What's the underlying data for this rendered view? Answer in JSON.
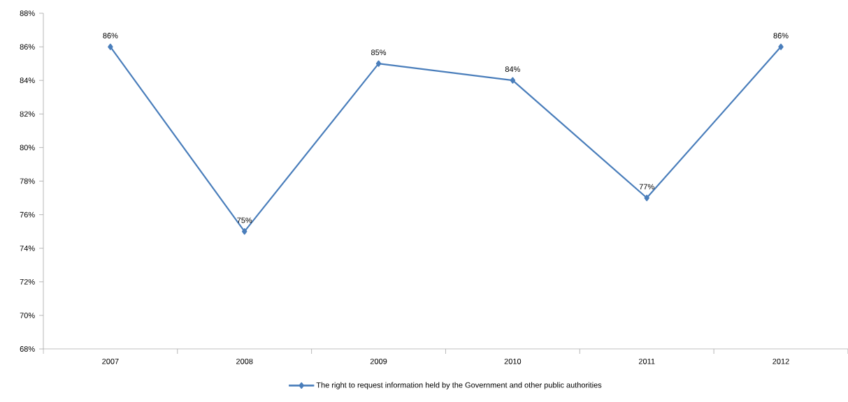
{
  "chart_data": {
    "type": "line",
    "categories": [
      "2007",
      "2008",
      "2009",
      "2010",
      "2011",
      "2012"
    ],
    "series": [
      {
        "name": "The right to request information held by the Government and other public authorities",
        "color": "#4a7ebb",
        "values": [
          86,
          75,
          85,
          84,
          77,
          86
        ],
        "value_labels": [
          "86%",
          "75%",
          "85%",
          "84%",
          "77%",
          "86%"
        ]
      }
    ],
    "ylim": [
      68,
      88
    ],
    "yticks": [
      {
        "value": 68,
        "label": "68%"
      },
      {
        "value": 70,
        "label": "70%"
      },
      {
        "value": 72,
        "label": "72%"
      },
      {
        "value": 74,
        "label": "74%"
      },
      {
        "value": 76,
        "label": "76%"
      },
      {
        "value": 78,
        "label": "78%"
      },
      {
        "value": 80,
        "label": "80%"
      },
      {
        "value": 82,
        "label": "82%"
      },
      {
        "value": 84,
        "label": "84%"
      },
      {
        "value": 86,
        "label": "86%"
      },
      {
        "value": 88,
        "label": "88%"
      }
    ],
    "grid": false,
    "legend": "bottom",
    "marker": "diamond",
    "line_style": "solid"
  }
}
